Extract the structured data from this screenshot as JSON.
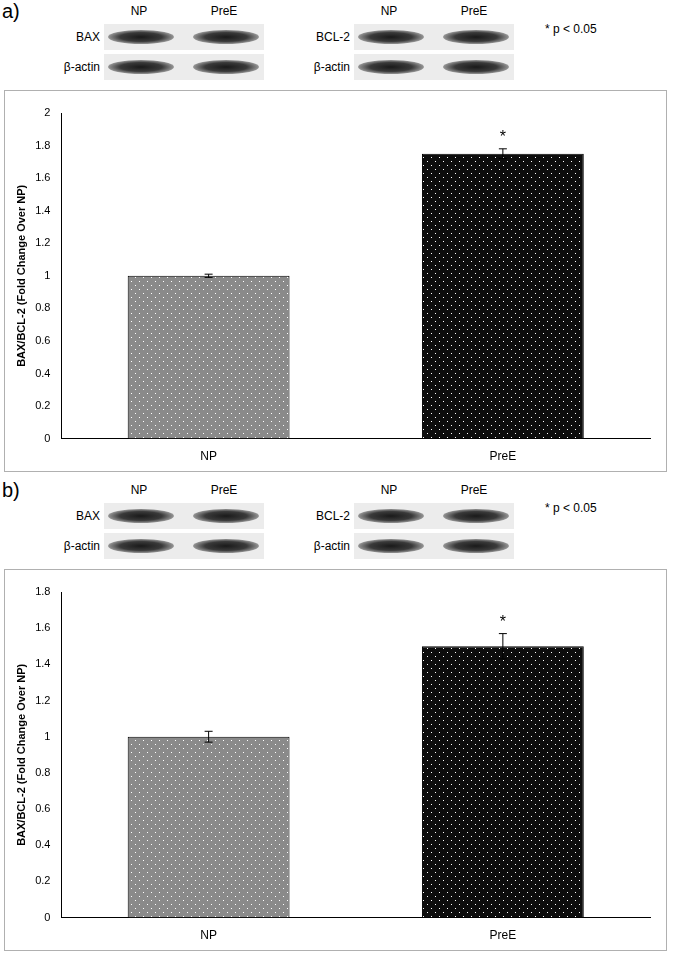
{
  "chart_data": [
    {
      "type": "bar",
      "panel": "a)",
      "blots": [
        {
          "protein": "BAX",
          "control": "β-actin"
        },
        {
          "protein": "BCL-2",
          "control": "β-actin"
        }
      ],
      "lanes": [
        "NP",
        "PreE"
      ],
      "significance": "* p < 0.05",
      "categories": [
        "NP",
        "PreE"
      ],
      "values": [
        1,
        1.75
      ],
      "errors": [
        0.01,
        0.03
      ],
      "annotations": [
        {
          "category": "PreE",
          "text": "*"
        }
      ],
      "colors": [
        "#8a8a8a",
        "#0d0d0d"
      ],
      "y_label": "BAX/BCL-2 (Fold Change Over NP)",
      "ylim": [
        0,
        2
      ],
      "yticks": [
        0,
        0.2,
        0.4,
        0.6,
        0.8,
        1,
        1.2,
        1.4,
        1.6,
        1.8,
        2
      ],
      "grid": false
    },
    {
      "type": "bar",
      "panel": "b)",
      "blots": [
        {
          "protein": "BAX",
          "control": "β-actin"
        },
        {
          "protein": "BCL-2",
          "control": "β-actin"
        }
      ],
      "lanes": [
        "NP",
        "PreE"
      ],
      "significance": "* p < 0.05",
      "categories": [
        "NP",
        "PreE"
      ],
      "values": [
        1,
        1.5
      ],
      "errors": [
        0.03,
        0.07
      ],
      "annotations": [
        {
          "category": "PreE",
          "text": "*"
        }
      ],
      "colors": [
        "#8a8a8a",
        "#0d0d0d"
      ],
      "y_label": "BAX/BCL-2 (Fold Change Over NP)",
      "ylim": [
        0,
        1.8
      ],
      "yticks": [
        0,
        0.2,
        0.4,
        0.6,
        0.8,
        1,
        1.2,
        1.4,
        1.6,
        1.8
      ],
      "grid": false
    }
  ]
}
